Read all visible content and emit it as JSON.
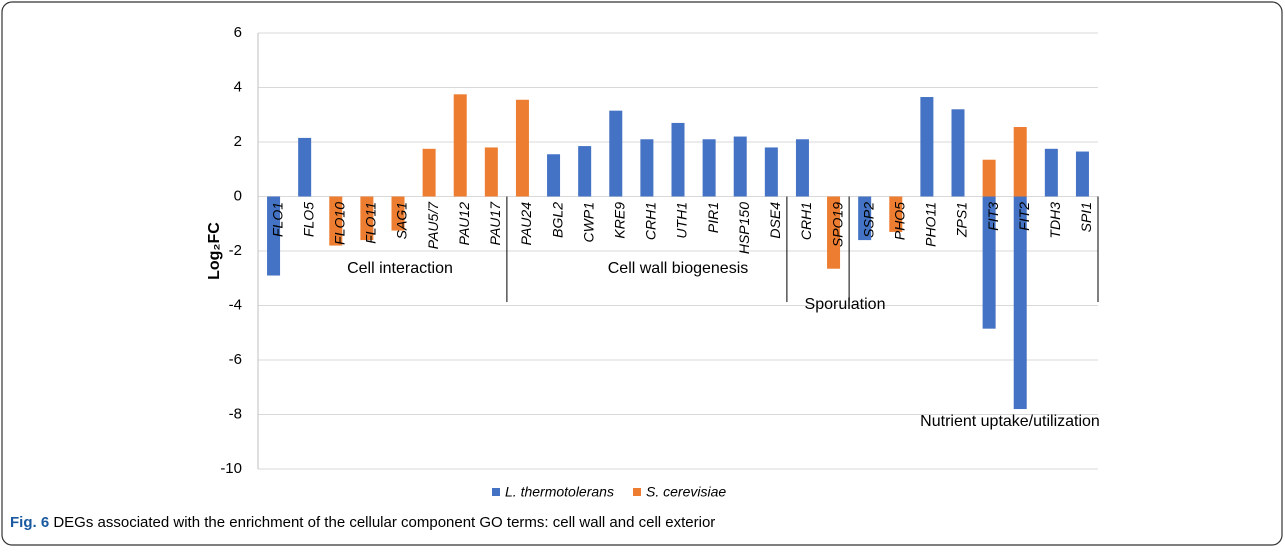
{
  "chart_data": {
    "type": "bar",
    "y_label": "Log₂FC",
    "categories": [
      "FLO1",
      "FLO5",
      "FLO10",
      "FLO11",
      "SAG1",
      "PAU5/7",
      "PAU12",
      "PAU17",
      "PAU24",
      "BGL2",
      "CWP1",
      "KRE9",
      "CRH1",
      "UTH1",
      "PIR1",
      "HSP150",
      "DSE4",
      "CRH1",
      "SPO19",
      "SSP2",
      "PHO5",
      "PHO11",
      "ZPS1",
      "FIT3",
      "FIT2",
      "TDH3",
      "SPI1"
    ],
    "series": [
      {
        "name": "L. thermotolerans",
        "color": "#4472c4",
        "values": [
          -2.9,
          2.15,
          null,
          null,
          null,
          null,
          null,
          null,
          null,
          1.55,
          1.85,
          3.15,
          2.1,
          2.7,
          2.1,
          2.2,
          1.8,
          2.1,
          null,
          -1.6,
          null,
          3.65,
          3.2,
          -4.85,
          -7.8,
          1.75,
          1.65
        ]
      },
      {
        "name": "S. cerevisiae",
        "color": "#ed7d31",
        "values": [
          null,
          null,
          -1.8,
          -1.6,
          -1.25,
          1.75,
          3.75,
          1.8,
          3.55,
          null,
          null,
          null,
          null,
          null,
          null,
          null,
          null,
          null,
          -2.65,
          null,
          -1.3,
          null,
          null,
          1.35,
          2.55,
          null,
          null
        ]
      }
    ],
    "annotations": [
      "Cell interaction",
      "Cell wall biogenesis",
      "Sporulation",
      "Nutrient uptake/utilization"
    ],
    "ylim": [
      -10,
      6
    ],
    "yticks": [
      -10,
      -8,
      -6,
      -4,
      -2,
      0,
      2,
      4,
      6
    ],
    "grid": true,
    "legend": "bottom",
    "caption_label": "Fig. 6",
    "caption_text": "DEGs associated with the enrichment of the cellular component GO terms: cell wall and cell exterior"
  }
}
